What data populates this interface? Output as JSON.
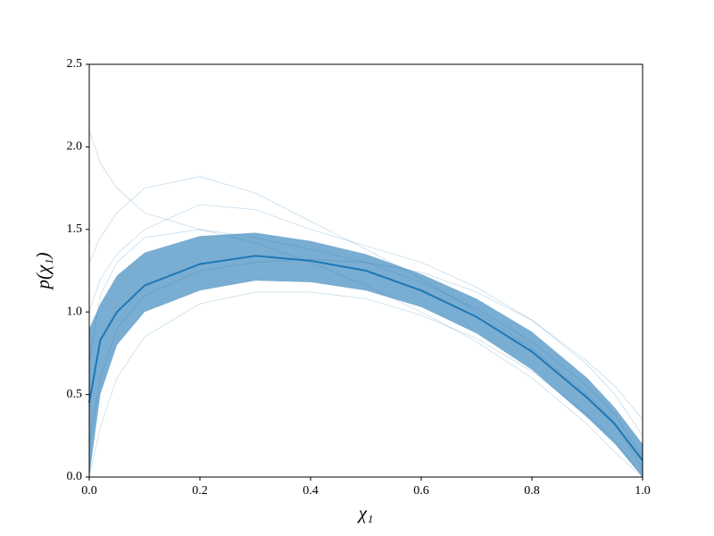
{
  "chart_data": {
    "type": "line",
    "x_label": "χ₁",
    "y_label": "p(χ₁)",
    "x": [
      0,
      0.02,
      0.05,
      0.1,
      0.2,
      0.3,
      0.4,
      0.5,
      0.6,
      0.7,
      0.8,
      0.9,
      0.95,
      1.0
    ],
    "mean": {
      "color": "#1f77b4",
      "values": [
        0.45,
        0.83,
        1.0,
        1.16,
        1.29,
        1.34,
        1.31,
        1.25,
        1.13,
        0.97,
        0.76,
        0.48,
        0.32,
        0.1
      ]
    },
    "band": {
      "color": "#1f77b4",
      "upper": [
        0.9,
        1.05,
        1.22,
        1.36,
        1.46,
        1.48,
        1.43,
        1.35,
        1.23,
        1.08,
        0.88,
        0.6,
        0.42,
        0.2
      ],
      "lower": [
        0.0,
        0.5,
        0.8,
        1.0,
        1.13,
        1.19,
        1.18,
        1.13,
        1.03,
        0.87,
        0.65,
        0.36,
        0.2,
        0.0
      ]
    },
    "samples": [
      [
        2.1,
        1.9,
        1.75,
        1.6,
        1.5,
        1.45,
        1.38,
        1.3,
        1.18,
        1.02,
        0.82,
        0.55,
        0.38,
        0.12
      ],
      [
        0.0,
        0.3,
        0.6,
        0.85,
        1.05,
        1.12,
        1.12,
        1.08,
        0.98,
        0.84,
        0.64,
        0.38,
        0.22,
        0.0
      ],
      [
        1.3,
        1.45,
        1.6,
        1.75,
        1.82,
        1.72,
        1.55,
        1.38,
        1.2,
        1.0,
        0.78,
        0.5,
        0.33,
        0.05
      ],
      [
        0.2,
        0.6,
        0.9,
        1.1,
        1.25,
        1.3,
        1.32,
        1.3,
        1.24,
        1.12,
        0.95,
        0.7,
        0.55,
        0.35
      ],
      [
        0.7,
        1.1,
        1.3,
        1.45,
        1.5,
        1.42,
        1.3,
        1.16,
        1.0,
        0.82,
        0.6,
        0.32,
        0.15,
        0.0
      ],
      [
        1.0,
        1.2,
        1.35,
        1.5,
        1.65,
        1.62,
        1.5,
        1.4,
        1.3,
        1.15,
        0.95,
        0.68,
        0.5,
        0.25
      ]
    ],
    "xlim": [
      0,
      1
    ],
    "ylim": [
      0,
      2.5
    ],
    "xticks": [
      {
        "value": 0,
        "label": "0.0"
      },
      0.2,
      0.4,
      0.6,
      0.8,
      {
        "value": 1,
        "label": "1.0"
      }
    ],
    "yticks": [
      {
        "value": 0,
        "label": "0.0"
      },
      0.5,
      {
        "value": 1,
        "label": "1.0"
      },
      1.5,
      {
        "value": 2,
        "label": "2.0"
      },
      2.5
    ]
  }
}
